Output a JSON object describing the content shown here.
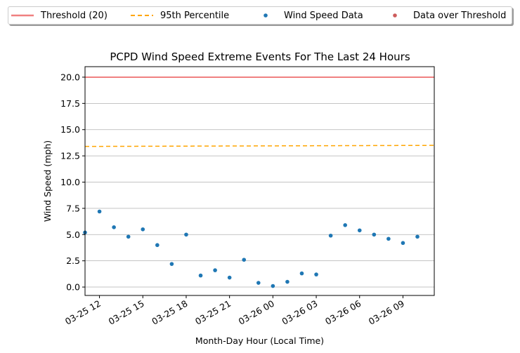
{
  "chart_data": {
    "type": "scatter",
    "title": "PCPD Wind Speed Extreme Events For The Last 24 Hours",
    "xlabel": "Month-Day Hour (Local Time)",
    "ylabel": "Wind Speed (mph)",
    "ylim": [
      -0.8,
      21.0
    ],
    "xlim": [
      "03-25 11:00",
      "03-26 11:10"
    ],
    "grid": "y",
    "legend_placement": "top",
    "x_ticks": [
      "03-25 12",
      "03-25 15",
      "03-25 18",
      "03-25 21",
      "03-26 00",
      "03-26 03",
      "03-26 06",
      "03-26 09"
    ],
    "y_ticks": [
      "0.0",
      "2.5",
      "5.0",
      "7.5",
      "10.0",
      "12.5",
      "15.0",
      "17.5",
      "20.0"
    ],
    "series": [
      {
        "name": "Threshold (20)",
        "kind": "line",
        "color": "#f08080",
        "values": [
          20,
          20
        ]
      },
      {
        "name": "95th Percentile",
        "kind": "line-dashed",
        "color": "#ffa500",
        "values": [
          13.4,
          13.5
        ]
      },
      {
        "name": "Wind Speed Data",
        "kind": "scatter",
        "color": "#1f77b4",
        "x": [
          "03-25 11:00",
          "03-25 12:00",
          "03-25 13:00",
          "03-25 14:00",
          "03-25 15:00",
          "03-25 16:00",
          "03-25 17:00",
          "03-25 18:00",
          "03-25 19:00",
          "03-25 20:00",
          "03-25 21:00",
          "03-25 22:00",
          "03-25 23:00",
          "03-26 00:00",
          "03-26 01:00",
          "03-26 02:00",
          "03-26 03:00",
          "03-26 04:00",
          "03-26 05:00",
          "03-26 06:00",
          "03-26 07:00",
          "03-26 08:00",
          "03-26 09:00",
          "03-26 10:00"
        ],
        "values": [
          5.2,
          7.2,
          5.7,
          4.8,
          5.5,
          4.0,
          2.2,
          5.0,
          1.1,
          1.6,
          0.9,
          2.6,
          0.4,
          0.1,
          0.5,
          1.3,
          1.2,
          4.9,
          5.9,
          5.4,
          5.0,
          4.6,
          4.2,
          4.8
        ]
      },
      {
        "name": "Data over Threshold",
        "kind": "scatter",
        "color": "#cd5c5c",
        "x": [],
        "values": []
      }
    ]
  }
}
